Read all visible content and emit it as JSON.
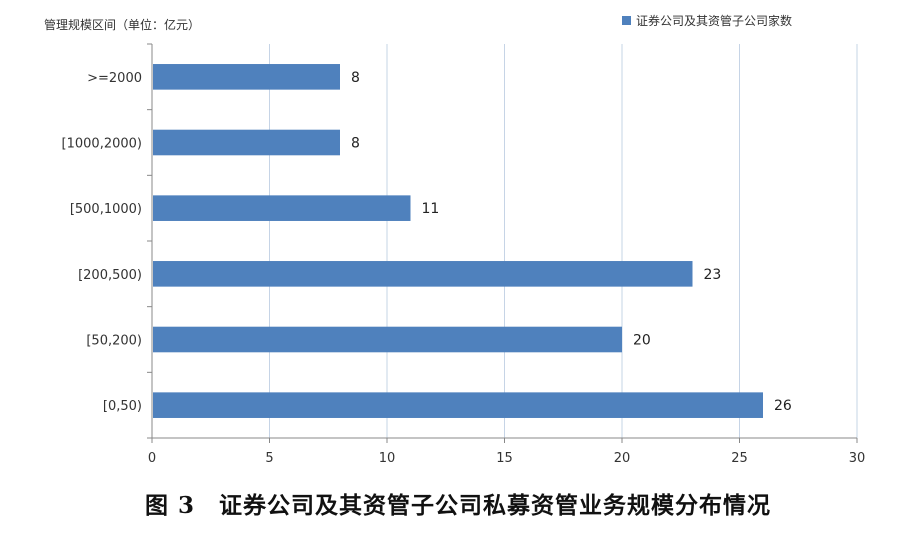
{
  "figure": {
    "caption": "图 3　证券公司及其资管子公司私募资管业务规模分布情况"
  },
  "chart_data": {
    "type": "bar",
    "orientation": "horizontal",
    "categories": [
      ">=2000",
      "[1000,2000)",
      "[500,1000)",
      "[200,500)",
      "[50,200)",
      "[0,50)"
    ],
    "series": [
      {
        "name": "证券公司及其资管子公司家数",
        "values": [
          8,
          8,
          11,
          23,
          20,
          26
        ],
        "color": "#4f81bd"
      }
    ],
    "ylabel": "管理规模区间（单位：亿元）",
    "xlabel": "",
    "xlim": [
      0,
      30
    ],
    "xticks": [
      0,
      5,
      10,
      15,
      20,
      25,
      30
    ],
    "grid": true,
    "legend_position": "top-right",
    "data_labels": true
  }
}
